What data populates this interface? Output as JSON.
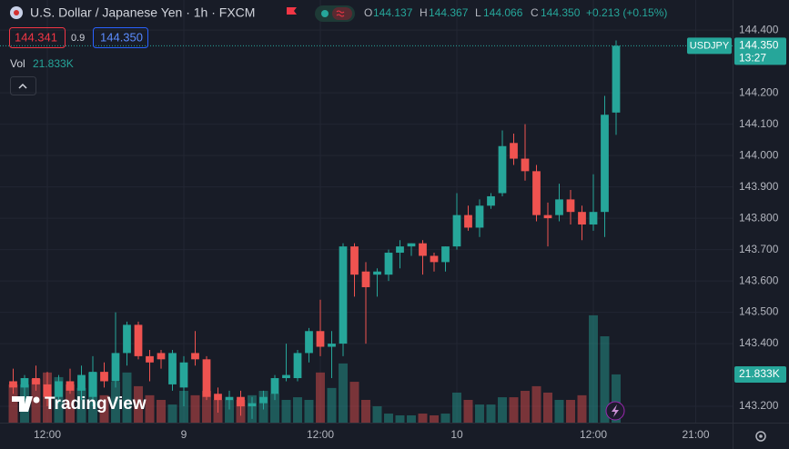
{
  "chart_data": {
    "type": "candlestick",
    "title": "U.S. Dollar / Japanese Yen · 1h · FXCM",
    "legend": {
      "letters": [
        "O",
        "H",
        "L",
        "C"
      ],
      "open": 144.137,
      "high": 144.367,
      "low": 144.066,
      "close": {
        "value": 144.35,
        "label": "144.350"
      },
      "change": "+0.213 (+0.15%)"
    },
    "bid": 144.341,
    "spread": 0.9,
    "ask": {
      "value": 144.35,
      "label": "144.350"
    },
    "volume_title": "Vol",
    "last_volume_label": "21.833K",
    "symbol": "USDJPY",
    "last_price": {
      "value": 144.35,
      "label": "144.350"
    },
    "countdown": "13:27",
    "logo": "TradingView",
    "up_color": "#26a69a",
    "down_color": "#ef5350",
    "open": [
      143.28,
      143.26,
      143.29,
      143.27,
      143.23,
      143.28,
      143.25,
      143.23,
      143.31,
      143.28,
      143.37,
      143.46,
      143.36,
      143.37,
      143.27,
      143.26,
      143.37,
      143.35,
      143.24,
      143.22,
      143.23,
      143.2,
      143.21,
      143.24,
      143.29,
      143.29,
      143.37,
      143.44,
      143.39,
      143.4,
      143.71,
      143.63,
      143.62,
      143.62,
      143.69,
      143.71,
      143.72,
      143.68,
      143.66,
      143.71,
      143.81,
      143.77,
      143.84,
      143.88,
      144.04,
      143.99,
      143.95,
      143.81,
      143.81,
      143.86,
      143.82,
      143.78,
      143.82,
      144.137
    ],
    "high": [
      143.32,
      143.3,
      143.33,
      143.31,
      143.3,
      143.32,
      143.33,
      143.36,
      143.34,
      143.5,
      143.47,
      143.47,
      143.38,
      143.38,
      143.38,
      143.36,
      143.44,
      143.36,
      143.26,
      143.25,
      143.25,
      143.23,
      143.25,
      143.3,
      143.4,
      143.38,
      143.45,
      143.54,
      143.44,
      143.72,
      143.72,
      143.66,
      143.64,
      143.7,
      143.73,
      143.72,
      143.73,
      143.69,
      143.71,
      143.88,
      143.84,
      143.86,
      143.88,
      144.08,
      144.07,
      144.1,
      143.97,
      143.85,
      143.91,
      143.89,
      143.84,
      143.94,
      144.19,
      144.367
    ],
    "low": [
      143.24,
      143.22,
      143.25,
      143.2,
      143.21,
      143.24,
      143.22,
      143.2,
      143.26,
      143.26,
      143.33,
      143.35,
      143.28,
      143.32,
      143.25,
      143.2,
      143.33,
      143.22,
      143.18,
      143.19,
      143.17,
      143.16,
      143.19,
      143.22,
      143.28,
      143.28,
      143.34,
      143.36,
      143.29,
      143.36,
      143.55,
      143.4,
      143.55,
      143.6,
      143.64,
      143.68,
      143.62,
      143.63,
      143.63,
      143.7,
      143.76,
      143.74,
      143.83,
      143.87,
      143.97,
      143.92,
      143.79,
      143.71,
      143.79,
      143.78,
      143.73,
      143.76,
      143.74,
      144.066
    ],
    "close": [
      143.26,
      143.29,
      143.27,
      143.23,
      143.28,
      143.25,
      143.3,
      143.31,
      143.28,
      143.37,
      143.46,
      143.36,
      143.34,
      143.35,
      143.37,
      143.34,
      143.35,
      143.23,
      143.22,
      143.23,
      143.2,
      143.21,
      143.23,
      143.29,
      143.3,
      143.37,
      143.44,
      143.39,
      143.4,
      143.71,
      143.62,
      143.58,
      143.63,
      143.69,
      143.71,
      143.72,
      143.68,
      143.66,
      143.71,
      143.81,
      143.77,
      143.84,
      143.87,
      144.03,
      143.99,
      143.95,
      143.81,
      143.8,
      143.86,
      143.82,
      143.78,
      143.82,
      144.13,
      144.35
    ],
    "volume": [
      17300,
      17300,
      19800,
      22700,
      20600,
      17300,
      15700,
      22700,
      12400,
      18500,
      22700,
      16500,
      12400,
      10300,
      8200,
      14400,
      12400,
      14400,
      10300,
      10300,
      10300,
      12400,
      14400,
      13200,
      10300,
      11500,
      10300,
      22700,
      15700,
      26800,
      18500,
      10300,
      7400,
      4100,
      3300,
      3300,
      4100,
      3300,
      4100,
      13600,
      10300,
      8200,
      8200,
      11500,
      11500,
      14400,
      16500,
      13600,
      10300,
      10300,
      12400,
      48600,
      39100,
      21833
    ],
    "volume_ylim": [
      0,
      100000
    ],
    "xlim": [
      -1.16,
      63.24
    ],
    "xticks": [
      {
        "value": 3,
        "label": "12:00"
      },
      {
        "value": 15,
        "label": "9"
      },
      {
        "value": 27,
        "label": "12:00"
      },
      {
        "value": 39,
        "label": "10"
      },
      {
        "value": 51,
        "label": "12:00"
      },
      {
        "value": 60,
        "label": "21:00"
      }
    ],
    "ylim": [
      143.148,
      144.496
    ],
    "yticks": [
      {
        "value": 143.2,
        "label": "143.200"
      },
      {
        "value": 143.4,
        "label": "143.400"
      },
      {
        "value": 143.5,
        "label": "143.500"
      },
      {
        "value": 143.6,
        "label": "143.600"
      },
      {
        "value": 143.7,
        "label": "143.700"
      },
      {
        "value": 143.8,
        "label": "143.800"
      },
      {
        "value": 143.9,
        "label": "143.900"
      },
      {
        "value": 144.0,
        "label": "144.000"
      },
      {
        "value": 144.1,
        "label": "144.100"
      },
      {
        "value": 144.2,
        "label": "144.200"
      },
      {
        "value": 144.4,
        "label": "144.400"
      }
    ],
    "grid": true
  }
}
